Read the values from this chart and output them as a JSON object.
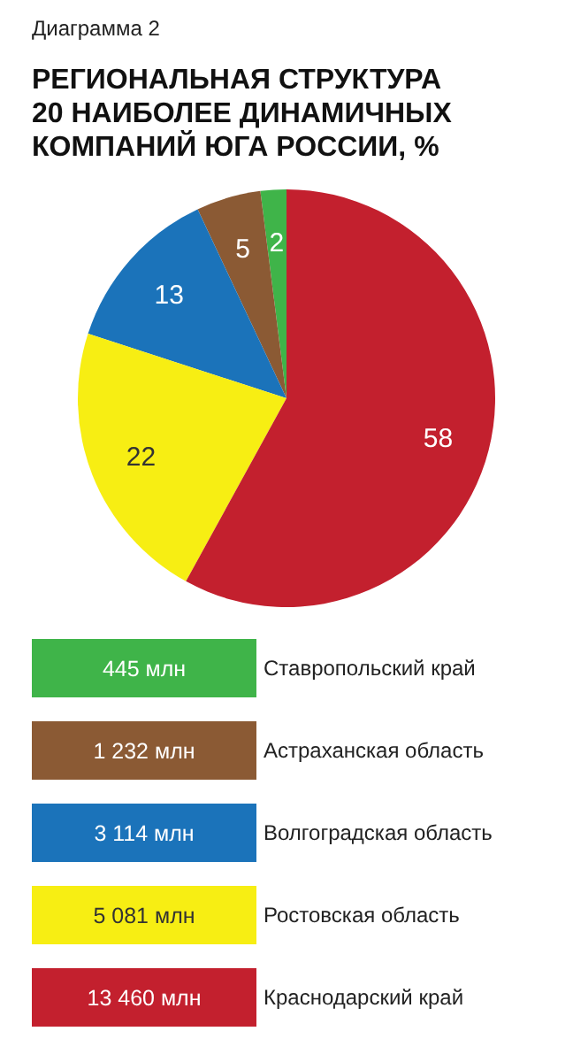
{
  "chart_data": {
    "type": "pie",
    "subtitle": "Диаграмма 2",
    "title": "РЕГИОНАЛЬНАЯ СТРУКТУРА 20 НАИБОЛЕЕ ДИНАМИЧНЫХ КОМПАНИЙ ЮГА РОССИИ, %",
    "categories": [
      "Ставропольский край",
      "Астраханская область",
      "Волгоградская область",
      "Ростовская область",
      "Краснодарский край"
    ],
    "values": [
      2,
      5,
      13,
      22,
      58
    ],
    "colors": [
      "#3fb449",
      "#8b5a34",
      "#1b73ba",
      "#f7ee13",
      "#c3202e"
    ],
    "data_labels": true,
    "legend": "bottom",
    "annotations": [
      "445 млн",
      "1 232 млн",
      "3 114 млн",
      "5 081 млн",
      "13 460 млн"
    ]
  }
}
